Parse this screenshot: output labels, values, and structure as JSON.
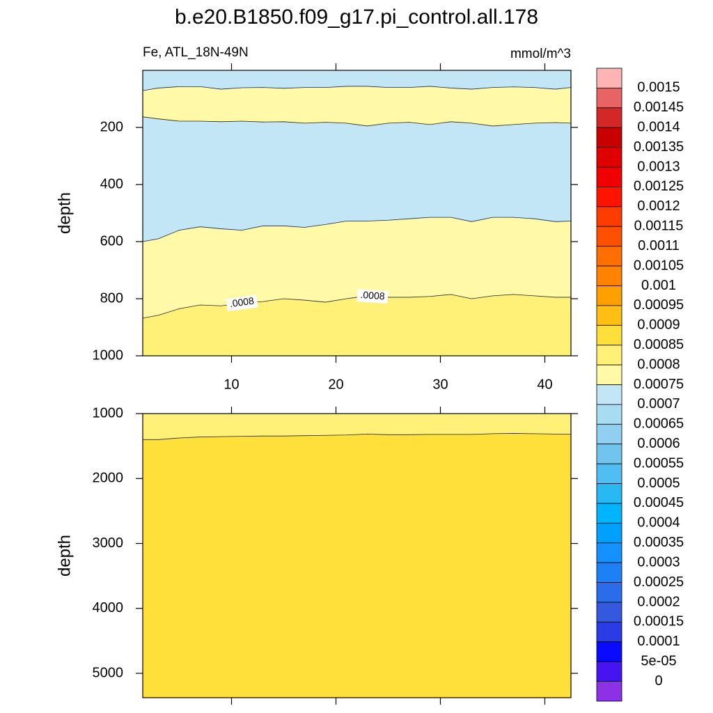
{
  "title": "b.e20.B1850.f09_g17.pi_control.all.178",
  "chart_data": [
    {
      "type": "contour",
      "subtitle_left": "Fe, ATL_18N-49N",
      "subtitle_right": "mmol/m^3",
      "ylabel": "depth",
      "x": [
        1.5,
        3,
        5,
        7,
        9,
        11,
        13,
        15,
        17,
        19,
        21,
        23,
        25,
        27,
        29,
        31,
        33,
        35,
        37,
        39,
        41,
        42.5
      ],
      "xlim": [
        1.5,
        42.5
      ],
      "xticks": [
        10,
        20,
        30,
        40
      ],
      "show_xtick_labels": true,
      "ylim": [
        0,
        1000
      ],
      "yticks": [
        200,
        400,
        600,
        800,
        1000
      ],
      "fill_colors": [
        "#c2e6f5",
        "#fff9a8",
        "#c2e6f5",
        "#fff9a8",
        "#fff077"
      ],
      "contours": [
        {
          "values": [
            71,
            62,
            57,
            57,
            66,
            61,
            60,
            63,
            60,
            60,
            56,
            56,
            60,
            60,
            56,
            62,
            66,
            60,
            58,
            60,
            66,
            60
          ]
        },
        {
          "values": [
            163,
            170,
            178,
            178,
            180,
            178,
            181,
            180,
            185,
            182,
            185,
            195,
            185,
            182,
            190,
            180,
            185,
            195,
            190,
            185,
            183,
            185
          ]
        },
        {
          "values": [
            600,
            590,
            560,
            548,
            555,
            560,
            545,
            545,
            550,
            540,
            528,
            528,
            525,
            520,
            515,
            515,
            530,
            515,
            515,
            520,
            530,
            528
          ]
        },
        {
          "values": [
            868,
            858,
            835,
            822,
            825,
            815,
            810,
            800,
            805,
            812,
            800,
            790,
            795,
            795,
            792,
            785,
            800,
            790,
            785,
            790,
            795,
            795
          ],
          "labels": [
            ".0008",
            ".0008"
          ],
          "label_x": [
            11,
            23.5
          ]
        }
      ]
    },
    {
      "type": "contour",
      "ylabel": "depth",
      "x": [
        1.5,
        3,
        5,
        7,
        9,
        11,
        13,
        15,
        17,
        19,
        21,
        23,
        25,
        27,
        29,
        31,
        33,
        35,
        37,
        39,
        41,
        42.5
      ],
      "xlim": [
        1.5,
        42.5
      ],
      "xticks": [
        10,
        20,
        30,
        40
      ],
      "show_xtick_labels": false,
      "ylim": [
        1000,
        5375
      ],
      "yticks": [
        1000,
        2000,
        3000,
        4000,
        5000
      ],
      "fill_colors": [
        "#fff077",
        "#ffe03a"
      ],
      "contours": [
        {
          "values": [
            1400,
            1400,
            1375,
            1360,
            1355,
            1350,
            1345,
            1345,
            1340,
            1335,
            1330,
            1315,
            1325,
            1325,
            1320,
            1320,
            1320,
            1310,
            1305,
            1310,
            1315,
            1315
          ]
        }
      ]
    }
  ],
  "colorbar": {
    "labels": [
      0.0015,
      0.00145,
      0.0014,
      0.00135,
      0.0013,
      0.00125,
      0.0012,
      0.00115,
      0.0011,
      0.00105,
      0.001,
      0.00095,
      0.0009,
      0.00085,
      0.0008,
      0.00075,
      0.0007,
      0.00065,
      0.0006,
      0.00055,
      0.0005,
      0.00045,
      0.0004,
      0.00035,
      0.0003,
      0.00025,
      0.0002,
      0.00015,
      0.0001,
      {
        "value": 5e-05,
        "label": "5e-05"
      },
      0
    ],
    "colors": [
      "#ffb4b4",
      "#e86464",
      "#d42828",
      "#c80000",
      "#e00000",
      "#f00000",
      "#ff1400",
      "#ff3c00",
      "#ff5000",
      "#ff6e00",
      "#ff8200",
      "#ffa000",
      "#ffbe14",
      "#ffe03a",
      "#fff077",
      "#fff9a8",
      "#c2e6f5",
      "#a8dcf2",
      "#90cff0",
      "#70c4ee",
      "#50bef2",
      "#28b9f5",
      "#00b4ff",
      "#00a0ff",
      "#1490ff",
      "#1e80f5",
      "#2a6cea",
      "#3458de",
      "#2a3ce6",
      "#0a0aff",
      "#4614f0",
      "#8c32e6"
    ]
  }
}
